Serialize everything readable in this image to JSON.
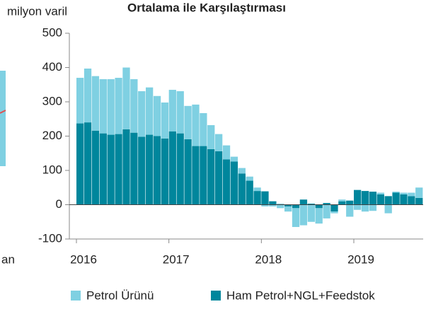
{
  "chart_data": {
    "type": "bar",
    "stacked": true,
    "title": "Ortalama ile Karşılaştırması",
    "y_label": "milyon varil",
    "fragment_label": "an",
    "categories": [
      "2016",
      null,
      null,
      null,
      null,
      null,
      null,
      null,
      null,
      null,
      null,
      null,
      "2017",
      null,
      null,
      null,
      null,
      null,
      null,
      null,
      null,
      null,
      null,
      null,
      "2018",
      null,
      null,
      null,
      null,
      null,
      null,
      null,
      null,
      null,
      null,
      null,
      "2019",
      null,
      null,
      null,
      null,
      null,
      null,
      null,
      null
    ],
    "series": [
      {
        "name": "Ham Petrol+NGL+Feedstok",
        "color": "#00869c",
        "values": [
          237,
          240,
          216,
          208,
          204,
          206,
          220,
          210,
          198,
          204,
          200,
          193,
          214,
          208,
          191,
          171,
          171,
          162,
          156,
          132,
          126,
          91,
          70,
          40,
          39,
          10,
          2,
          -5,
          -10,
          15,
          3,
          -10,
          5,
          -20,
          10,
          12,
          43,
          40,
          38,
          30,
          25,
          35,
          30,
          25,
          20
        ]
      },
      {
        "name": "Petrol Ürünü",
        "color": "#7fd0e2",
        "values": [
          133,
          157,
          159,
          158,
          162,
          164,
          180,
          156,
          133,
          138,
          117,
          105,
          121,
          123,
          97,
          121,
          96,
          70,
          50,
          41,
          14,
          16,
          12,
          10,
          -5,
          -5,
          -10,
          -15,
          -55,
          -60,
          -50,
          -45,
          -40,
          -5,
          5,
          -35,
          -15,
          -20,
          -18,
          5,
          -25,
          3,
          5,
          10,
          30
        ]
      }
    ],
    "ylim": [
      -100,
      500
    ],
    "yticks": [
      -100,
      0,
      100,
      200,
      300,
      400,
      500
    ],
    "legend": "bottom"
  }
}
